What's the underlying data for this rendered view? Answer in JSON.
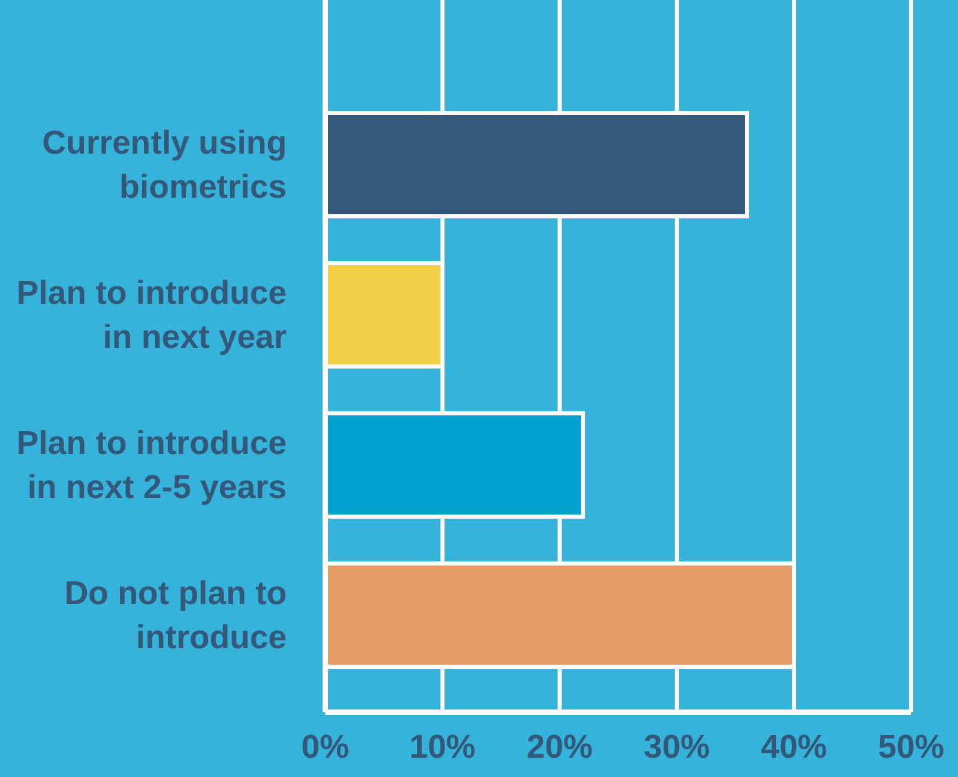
{
  "chart_data": {
    "type": "bar",
    "orientation": "horizontal",
    "categories": [
      "Currently using biometrics",
      "Plan to introduce in next year",
      "Plan to introduce in next 2-5 years",
      "Do not plan to introduce"
    ],
    "values": [
      36,
      10,
      22,
      40
    ],
    "colors": [
      "#335879",
      "#f2cf47",
      "#02a2d0",
      "#e69c67"
    ],
    "xlim": [
      0,
      50
    ],
    "xticks": [
      {
        "value": 0,
        "label": "0%"
      },
      {
        "value": 10,
        "label": "10%"
      },
      {
        "value": 20,
        "label": "20%"
      },
      {
        "value": 30,
        "label": "30%"
      },
      {
        "value": 40,
        "label": "40%"
      },
      {
        "value": 50,
        "label": "50%"
      }
    ],
    "grid": "x"
  }
}
